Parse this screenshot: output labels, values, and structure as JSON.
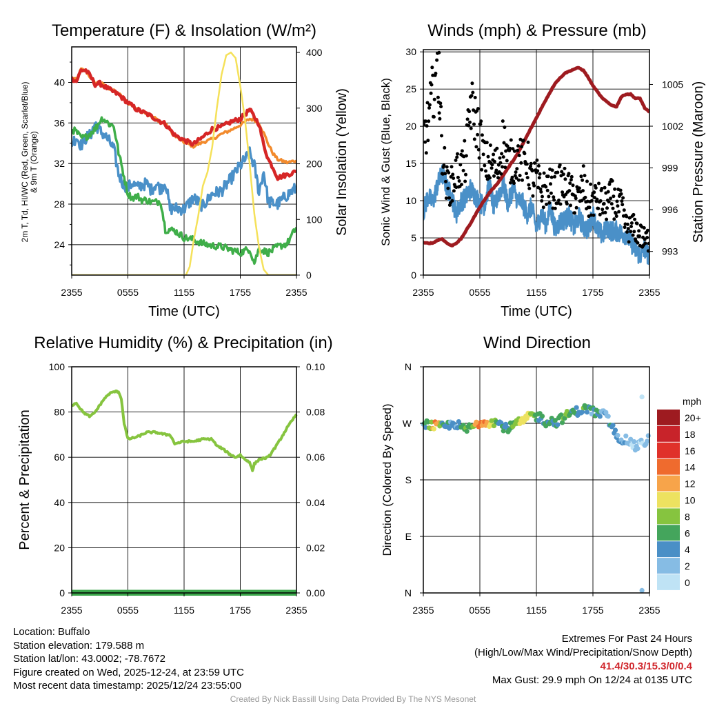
{
  "colors": {
    "red": "#d62626",
    "orange": "#f28a2c",
    "green": "#3fae49",
    "blue": "#4a90c8",
    "yellow": "#f5e15a",
    "maroon": "#9e1b20",
    "black": "#000000",
    "rh": "#86c43f",
    "precip": "#3aa64a",
    "grid": "#000000",
    "credit": "#999999"
  },
  "time_ticks": [
    "2355",
    "0555",
    "1155",
    "1755",
    "2355"
  ],
  "panels": {
    "temperature": {
      "title": "Temperature (F) & Insolation (W/m²)",
      "left_label_line1": "2m T, Td, HI/WC (Red, Green, Scarlet/Blue)",
      "left_label_line2": "& 9m T (Orange)",
      "right_label": "Solar Insolation (Yellow)",
      "xlabel": "Time (UTC)",
      "left_ticks": [
        "24",
        "28",
        "32",
        "36",
        "40"
      ],
      "right_ticks": [
        "0",
        "100",
        "200",
        "300",
        "400"
      ]
    },
    "winds": {
      "title": "Winds (mph) & Pressure (mb)",
      "left_label": "Sonic Wind & Gust (Blue, Black)",
      "right_label": "Station Pressure (Maroon)",
      "xlabel": "Time (UTC)",
      "left_ticks": [
        "0",
        "5",
        "10",
        "15",
        "20",
        "25",
        "30"
      ],
      "right_ticks": [
        "993",
        "996",
        "999",
        "1002",
        "1005"
      ]
    },
    "humidity": {
      "title": "Relative Humidity (%) & Precipitation (in)",
      "left_label": "Percent & Precipitation",
      "left_ticks": [
        "0",
        "20",
        "40",
        "60",
        "80",
        "100"
      ],
      "right_ticks": [
        "0.00",
        "0.02",
        "0.04",
        "0.06",
        "0.08",
        "0.10"
      ]
    },
    "direction": {
      "title": "Wind Direction",
      "left_label": "Direction (Colored By Speed)",
      "direction_ticks": [
        "N",
        "E",
        "S",
        "W",
        "N"
      ],
      "legend_title": "mph",
      "legend_labels": [
        "20+",
        "18",
        "16",
        "14",
        "12",
        "10",
        "8",
        "6",
        "4",
        "2",
        "0"
      ],
      "legend_colors": [
        "#9e1b20",
        "#c8232a",
        "#e0312a",
        "#ef6b2e",
        "#f7a44a",
        "#ede260",
        "#86c43f",
        "#44a55c",
        "#4a8fc6",
        "#86bce4",
        "#bfe3f5"
      ]
    }
  },
  "chart_data": [
    {
      "type": "line",
      "title": "Temperature (F) & Insolation (W/m²)",
      "xlabel": "Time (UTC)",
      "x_hours": [
        0,
        24
      ],
      "ylim": [
        21,
        43.5
      ],
      "y2lim": [
        0,
        410
      ],
      "series": [
        {
          "name": "2m T (Red)",
          "axis": "left",
          "x": [
            0,
            0.5,
            1,
            1.5,
            2,
            2.5,
            3,
            3.5,
            4,
            5,
            6,
            7,
            8,
            9,
            10,
            11,
            12,
            13,
            14,
            15,
            16,
            17,
            18,
            19,
            19.5,
            20,
            20.5,
            21,
            21.5,
            22,
            23,
            24
          ],
          "y": [
            40.4,
            40.1,
            41.2,
            41.2,
            40.6,
            39.8,
            39.9,
            39.6,
            39.3,
            38.8,
            38.0,
            37.3,
            36.9,
            36.4,
            35.9,
            34.8,
            34.3,
            33.9,
            34.6,
            35.4,
            35.6,
            36.1,
            36.4,
            37.3,
            36.6,
            35.9,
            33.8,
            32.4,
            31.6,
            30.6,
            30.9,
            31.2
          ]
        },
        {
          "name": "9m T (Orange)",
          "axis": "left",
          "x": [
            0,
            0.5,
            1,
            1.5,
            2,
            2.5,
            3,
            3.5,
            4,
            5,
            6,
            7,
            8,
            9,
            10,
            11,
            12,
            13,
            14,
            15,
            16,
            17,
            18,
            19,
            19.5,
            20,
            20.5,
            21,
            21.5,
            22,
            23,
            24
          ],
          "y": [
            40.5,
            40.2,
            41.3,
            41.1,
            40.5,
            39.9,
            40.0,
            39.7,
            39.4,
            38.9,
            38.0,
            37.4,
            37.0,
            36.4,
            35.9,
            34.7,
            34.1,
            33.7,
            34.1,
            34.4,
            34.9,
            35.3,
            35.8,
            36.4,
            36.3,
            36.0,
            35.0,
            33.9,
            33.0,
            32.4,
            32.1,
            32.3
          ]
        },
        {
          "name": "Td (Green)",
          "axis": "left",
          "x": [
            0,
            0.5,
            1,
            1.5,
            2,
            2.5,
            3,
            3.3,
            4,
            4.5,
            5,
            5.5,
            6,
            6.5,
            7,
            7.5,
            8,
            8.5,
            9,
            9.5,
            10,
            11,
            12,
            13,
            14,
            15,
            16,
            17,
            18,
            19,
            19.5,
            20,
            21,
            22,
            23,
            24
          ],
          "y": [
            35.4,
            35.1,
            34.5,
            34.6,
            35.0,
            35.4,
            36.2,
            36.5,
            35.9,
            35.7,
            33.1,
            31.1,
            29.0,
            28.6,
            28.8,
            28.4,
            28.4,
            28.2,
            28.2,
            28.3,
            25.5,
            25.4,
            24.7,
            24.5,
            24.1,
            23.9,
            23.8,
            23.5,
            23.2,
            23.6,
            22.2,
            23.6,
            23.2,
            23.8,
            24.1,
            25.7
          ]
        },
        {
          "name": "HI/WC (Blue)",
          "axis": "left",
          "x": [
            0,
            0.5,
            1,
            1.5,
            2,
            2.5,
            3,
            3.5,
            4,
            4.5,
            5,
            5.5,
            6,
            6.5,
            7,
            7.5,
            8,
            8.5,
            9,
            9.5,
            10,
            10.5,
            11,
            12,
            13,
            14,
            15,
            16,
            17,
            18,
            19,
            19.5,
            20,
            20.5,
            21,
            22,
            23,
            24
          ],
          "y": [
            34.0,
            34.6,
            33.8,
            34.5,
            34.8,
            36.0,
            35.2,
            34.8,
            34.2,
            33.4,
            31.0,
            30.0,
            29.6,
            30.1,
            29.6,
            29.9,
            30.0,
            29.4,
            30.0,
            29.5,
            30.2,
            27.5,
            27.6,
            27.5,
            28.6,
            27.8,
            29.0,
            29.3,
            30.5,
            31.8,
            33.0,
            31.8,
            29.2,
            31.2,
            28.2,
            28.0,
            28.9,
            29.6
          ]
        },
        {
          "name": "Solar Insolation (Yellow)",
          "axis": "right",
          "x": [
            0,
            12.2,
            12.6,
            13,
            13.5,
            14,
            14.5,
            15,
            15.5,
            16,
            16.5,
            17,
            17.5,
            18,
            18.5,
            19,
            19.5,
            20,
            20.5,
            21,
            24
          ],
          "y": [
            0,
            0,
            15,
            60,
            105,
            160,
            185,
            230,
            300,
            360,
            395,
            400,
            390,
            340,
            280,
            200,
            110,
            50,
            10,
            0,
            0
          ]
        }
      ]
    },
    {
      "type": "line",
      "title": "Winds (mph) & Pressure (mb)",
      "xlabel": "Time (UTC)",
      "x_hours": [
        0,
        24
      ],
      "ylim": [
        0,
        30.3
      ],
      "y2lim": [
        991.3,
        1007.5
      ],
      "series": [
        {
          "name": "Sonic Wind (Blue)",
          "axis": "left",
          "x": [
            0,
            0.5,
            1,
            1.5,
            2,
            2.5,
            3,
            3.5,
            4,
            4.5,
            5,
            5.5,
            6,
            6.5,
            7,
            7.5,
            8,
            8.5,
            9,
            9.5,
            10,
            10.5,
            11,
            11.5,
            12,
            12.5,
            13,
            13.5,
            14,
            14.5,
            15,
            15.5,
            16,
            16.5,
            17,
            17.5,
            18,
            18.5,
            19,
            19.5,
            20,
            20.5,
            21,
            21.5,
            22,
            22.5,
            23,
            23.5,
            24
          ],
          "y": [
            8.5,
            10.6,
            9.7,
            12.1,
            13.7,
            11.8,
            10.6,
            8.2,
            9.9,
            10.4,
            11.6,
            10.7,
            9.7,
            9.4,
            12.3,
            8.9,
            11.0,
            12.1,
            9.5,
            11.7,
            10.0,
            9.8,
            8.2,
            9.2,
            6.2,
            8.3,
            6.8,
            9.0,
            6.1,
            7.2,
            7.4,
            8.0,
            6.3,
            7.8,
            6.5,
            6.1,
            8.1,
            6.1,
            5.3,
            6.4,
            5.9,
            5.9,
            5.6,
            5.5,
            4.5,
            3.4,
            2.6,
            3.5,
            2.5
          ]
        },
        {
          "name": "Gust (Black)",
          "axis": "left",
          "x": [
            0,
            0.5,
            1,
            1.5,
            2,
            2.5,
            3,
            3.5,
            4,
            4.5,
            5,
            5.5,
            6,
            6.5,
            7,
            7.5,
            8,
            8.5,
            9,
            9.5,
            10,
            10.5,
            11,
            11.5,
            12,
            12.5,
            13,
            13.5,
            14,
            14.5,
            15,
            15.5,
            16,
            16.5,
            17,
            17.5,
            18,
            18.5,
            19,
            19.5,
            20,
            20.5,
            21,
            21.5,
            22,
            22.5,
            23,
            23.5,
            24
          ],
          "y": [
            18.5,
            20.2,
            24.5,
            28.5,
            16.8,
            12.1,
            12.0,
            13.8,
            14.3,
            15.3,
            23.0,
            21.1,
            18.7,
            15.1,
            15.0,
            14.5,
            14.7,
            18.5,
            15.2,
            15.2,
            15.7,
            15.2,
            15.8,
            12.5,
            13.2,
            11.2,
            11.7,
            11.8,
            11.3,
            12.2,
            11.9,
            11.3,
            10.4,
            10.2,
            12.2,
            9.6,
            10.1,
            10.2,
            9.6,
            9.5,
            10.6,
            9.2,
            9.3,
            6.5,
            6.2,
            6.3,
            5.3,
            4.6,
            4.9
          ]
        },
        {
          "name": "Station Pressure (Maroon)",
          "axis": "right",
          "x": [
            0,
            1,
            1.5,
            2,
            2.5,
            3,
            3.5,
            4,
            5,
            6,
            7,
            8,
            9,
            10,
            11,
            12,
            13,
            14,
            15,
            16,
            16.5,
            17,
            17.5,
            18,
            19,
            20,
            20.5,
            21,
            21.5,
            22,
            22.5,
            23,
            23.5,
            24
          ],
          "y": [
            993.6,
            993.6,
            993.8,
            993.9,
            993.6,
            993.4,
            993.6,
            993.9,
            995.0,
            996.2,
            997.2,
            998.0,
            999.0,
            1000.0,
            1001.3,
            1002.6,
            1003.9,
            1005.1,
            1005.8,
            1006.1,
            1006.2,
            1006.0,
            1005.5,
            1004.9,
            1004.0,
            1003.5,
            1003.4,
            1004.1,
            1004.3,
            1004.3,
            1004.0,
            1004.0,
            1003.3,
            1003.0
          ]
        }
      ]
    },
    {
      "type": "line",
      "title": "Relative Humidity (%) & Precipitation (in)",
      "x_hours": [
        0,
        24
      ],
      "ylim": [
        0,
        100
      ],
      "y2lim": [
        0,
        0.1
      ],
      "series": [
        {
          "name": "Relative Humidity",
          "axis": "left",
          "x": [
            0,
            0.5,
            1,
            1.5,
            2,
            2.5,
            3,
            3.5,
            4,
            4.5,
            5,
            5.3,
            5.6,
            6,
            7,
            8,
            9,
            10,
            10.5,
            11,
            12,
            13,
            14,
            14.5,
            15,
            15.5,
            16,
            17,
            17.5,
            18,
            18.5,
            19,
            19.3,
            19.5,
            20,
            21,
            22,
            23,
            24
          ],
          "y": [
            83,
            84,
            81,
            79,
            78,
            80,
            83,
            86,
            88,
            89,
            89,
            86,
            75,
            68,
            69,
            71,
            71,
            70,
            70,
            66,
            67,
            67,
            68,
            68,
            68,
            65,
            64,
            61,
            60,
            61,
            59,
            58,
            54,
            57,
            59,
            60,
            66,
            73,
            79
          ]
        },
        {
          "name": "Precipitation",
          "axis": "right",
          "x": [
            0,
            24
          ],
          "y": [
            0,
            0
          ]
        }
      ]
    },
    {
      "type": "scatter",
      "title": "Wind Direction",
      "x_hours": [
        0,
        24
      ],
      "ylim": [
        "N",
        "N"
      ],
      "direction_degrees": [
        0,
        360
      ],
      "series": [
        {
          "name": "Direction (Colored By Speed)",
          "x": [
            0,
            0.5,
            1,
            1.5,
            2,
            2.5,
            3,
            3.5,
            4,
            4.5,
            5,
            5.5,
            6,
            6.5,
            7,
            7.5,
            8,
            8.5,
            9,
            9.5,
            10,
            10.5,
            11,
            11.5,
            12,
            12.5,
            13,
            13.5,
            14,
            14.5,
            15,
            15.5,
            16,
            16.5,
            17,
            17.5,
            18,
            18.5,
            19,
            19.5,
            20,
            20.5,
            21,
            21.5,
            22,
            22.5,
            23,
            23.5,
            24
          ],
          "direction": [
            272,
            268,
            266,
            265,
            264,
            266,
            268,
            270,
            262,
            260,
            263,
            267,
            271,
            274,
            272,
            273,
            270,
            265,
            262,
            266,
            270,
            272,
            278,
            283,
            281,
            280,
            272,
            275,
            271,
            276,
            280,
            285,
            288,
            290,
            292,
            294,
            289,
            285,
            285,
            280,
            265,
            250,
            246,
            243,
            240,
            232,
            236,
            240,
            248
          ],
          "speed": [
            5,
            6,
            12,
            14,
            6,
            5,
            4,
            4,
            6,
            8,
            7,
            12,
            15,
            14,
            11,
            9,
            7,
            6,
            6,
            8,
            9,
            11,
            12,
            9,
            7,
            6,
            6,
            7,
            6,
            7,
            8,
            7,
            6,
            5,
            7,
            6,
            5,
            6,
            4,
            5,
            6,
            5,
            4,
            3,
            3,
            2,
            2,
            3,
            2
          ]
        }
      ]
    }
  ],
  "footer": {
    "location": "Location: Buffalo",
    "elevation": "Station elevation: 179.588 m",
    "latlon": "Station lat/lon: 43.0002; -78.7672",
    "created": "Figure created on Wed, 2025-12-24, at 23:59 UTC",
    "recent": "Most recent data timestamp: 2025/12/24 23:55:00",
    "extremes_title": "Extremes For Past 24 Hours",
    "extremes_desc": "(High/Low/Max Wind/Precipitation/Snow Depth)",
    "extremes_values": "41.4/30.3/15.3/0/0.4",
    "max_gust": "Max Gust: 29.9 mph On 12/24 at 0135 UTC",
    "credit": "Created By Nick Bassill Using Data Provided By The NYS Mesonet"
  }
}
